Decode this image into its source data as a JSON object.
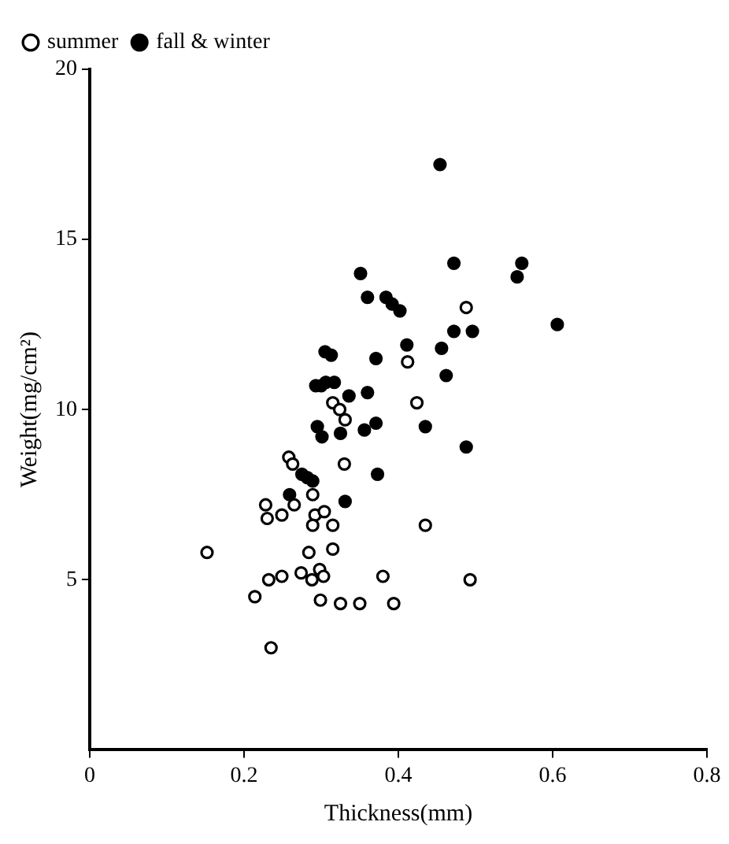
{
  "chart_data": {
    "type": "scatter",
    "xlabel": "Thickness(mm)",
    "ylabel": "Weight(mg/cm²)",
    "xlim": [
      0,
      0.8
    ],
    "xticks": [
      0,
      0.2,
      0.4,
      0.6,
      0.8
    ],
    "ylim": [
      0,
      20
    ],
    "yticks": [
      5,
      10,
      15,
      20
    ],
    "grid": false,
    "legend": "top left",
    "marker": "circle",
    "series": [
      {
        "name": "summer",
        "color": "#000000",
        "x": [
          0.488,
          0.412,
          0.315,
          0.424,
          0.324,
          0.331,
          0.258,
          0.263,
          0.33,
          0.289,
          0.228,
          0.23,
          0.249,
          0.265,
          0.292,
          0.304,
          0.289,
          0.315,
          0.435,
          0.152,
          0.284,
          0.315,
          0.214,
          0.232,
          0.249,
          0.274,
          0.288,
          0.298,
          0.303,
          0.299,
          0.325,
          0.35,
          0.38,
          0.394,
          0.493,
          0.235
        ],
        "values": [
          13.0,
          11.4,
          10.2,
          10.2,
          10.0,
          9.7,
          8.6,
          8.4,
          8.4,
          7.5,
          7.2,
          6.8,
          6.9,
          7.2,
          6.9,
          7.0,
          6.6,
          6.6,
          6.6,
          5.8,
          5.8,
          5.9,
          4.5,
          5.0,
          5.1,
          5.2,
          5.0,
          5.3,
          5.1,
          4.4,
          4.3,
          4.3,
          5.1,
          4.3,
          5.0,
          3.0
        ]
      },
      {
        "name": "fall & winter",
        "color": "#000000",
        "x": [
          0.454,
          0.351,
          0.472,
          0.56,
          0.554,
          0.36,
          0.384,
          0.392,
          0.402,
          0.606,
          0.472,
          0.496,
          0.305,
          0.313,
          0.371,
          0.411,
          0.456,
          0.462,
          0.293,
          0.3,
          0.306,
          0.317,
          0.336,
          0.36,
          0.295,
          0.301,
          0.325,
          0.356,
          0.371,
          0.435,
          0.488,
          0.373,
          0.275,
          0.282,
          0.289,
          0.259,
          0.331
        ],
        "values": [
          17.2,
          14.0,
          14.3,
          14.3,
          13.9,
          13.3,
          13.3,
          13.1,
          12.9,
          12.5,
          12.3,
          12.3,
          11.7,
          11.6,
          11.5,
          11.9,
          11.8,
          11.0,
          10.7,
          10.7,
          10.8,
          10.8,
          10.4,
          10.5,
          9.5,
          9.2,
          9.3,
          9.4,
          9.6,
          9.5,
          8.9,
          8.1,
          8.1,
          8.0,
          7.9,
          7.5,
          7.3
        ]
      }
    ]
  }
}
